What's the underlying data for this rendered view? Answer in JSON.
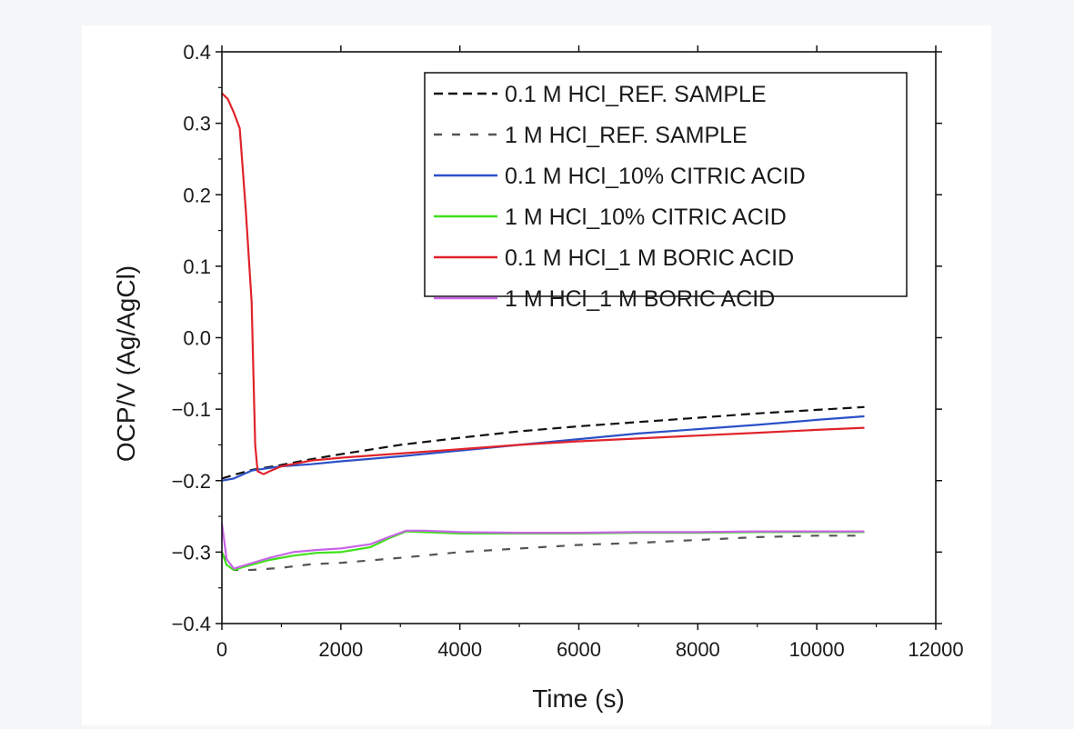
{
  "chart_data": {
    "type": "line",
    "title": "",
    "xlabel": "Time (s)",
    "ylabel": "OCP/V (Ag/AgCl)",
    "xlim": [
      0,
      12000
    ],
    "ylim": [
      -0.4,
      0.4
    ],
    "xticks": [
      0,
      2000,
      4000,
      6000,
      8000,
      10000,
      12000
    ],
    "yticks": [
      0.4,
      0.3,
      0.2,
      0.1,
      0.0,
      -0.1,
      -0.2,
      -0.3,
      -0.4
    ],
    "ytick_labels": [
      "0.4",
      "0.3",
      "0.2",
      "0.1",
      "0.0",
      "−0.1",
      "−0.2",
      "−0.3",
      "−0.4"
    ],
    "grid": false,
    "legend_position": "top-right",
    "series": [
      {
        "name": "0.1 M HCl_REF. SAMPLE",
        "color": "#111111",
        "dash": "dashed",
        "x": [
          0,
          200,
          500,
          1000,
          1500,
          2000,
          3000,
          4000,
          5000,
          6000,
          7000,
          8000,
          9000,
          10000,
          10800
        ],
        "y": [
          -0.197,
          -0.192,
          -0.185,
          -0.178,
          -0.17,
          -0.163,
          -0.15,
          -0.14,
          -0.131,
          -0.124,
          -0.118,
          -0.112,
          -0.106,
          -0.101,
          -0.097
        ]
      },
      {
        "name": "1 M HCl_REF. SAMPLE",
        "color": "#555555",
        "dash": "dashed-wide",
        "x": [
          0,
          100,
          200,
          500,
          1000,
          1500,
          2000,
          3000,
          4000,
          5000,
          6000,
          7000,
          8000,
          9000,
          10000,
          10800
        ],
        "y": [
          -0.3,
          -0.318,
          -0.325,
          -0.325,
          -0.322,
          -0.317,
          -0.315,
          -0.308,
          -0.3,
          -0.295,
          -0.29,
          -0.287,
          -0.283,
          -0.279,
          -0.277,
          -0.277
        ]
      },
      {
        "name": "0.1 M HCl_10% CITRIC ACID",
        "color": "#2b50c8",
        "dash": "solid",
        "x": [
          0,
          200,
          500,
          1000,
          1500,
          2000,
          3000,
          4000,
          5000,
          6000,
          7000,
          8000,
          9000,
          10000,
          10800
        ],
        "y": [
          -0.2,
          -0.197,
          -0.186,
          -0.18,
          -0.177,
          -0.173,
          -0.166,
          -0.158,
          -0.15,
          -0.142,
          -0.134,
          -0.128,
          -0.122,
          -0.115,
          -0.11
        ]
      },
      {
        "name": "1 M HCl_10% CITRIC ACID",
        "color": "#3ee01a",
        "dash": "solid",
        "x": [
          0,
          80,
          200,
          400,
          800,
          1200,
          1600,
          2000,
          2500,
          2800,
          3100,
          3400,
          4000,
          5000,
          6000,
          7000,
          8000,
          9000,
          10000,
          10800
        ],
        "y": [
          -0.3,
          -0.318,
          -0.325,
          -0.32,
          -0.311,
          -0.305,
          -0.301,
          -0.3,
          -0.293,
          -0.281,
          -0.271,
          -0.272,
          -0.274,
          -0.274,
          -0.274,
          -0.273,
          -0.273,
          -0.272,
          -0.272,
          -0.272
        ]
      },
      {
        "name": "0.1 M HCl_1 M BORIC ACID",
        "color": "#e0232b",
        "dash": "solid",
        "x": [
          0,
          100,
          200,
          300,
          400,
          500,
          560,
          600,
          700,
          800,
          1000,
          1500,
          2000,
          3000,
          4000,
          5000,
          6000,
          7000,
          8000,
          9000,
          10000,
          10800
        ],
        "y": [
          0.342,
          0.334,
          0.315,
          0.293,
          0.18,
          0.05,
          -0.15,
          -0.187,
          -0.191,
          -0.187,
          -0.18,
          -0.172,
          -0.168,
          -0.162,
          -0.156,
          -0.15,
          -0.145,
          -0.141,
          -0.137,
          -0.133,
          -0.129,
          -0.126
        ]
      },
      {
        "name": "1 M HCl_1 M BORIC ACID",
        "color": "#c865e8",
        "dash": "solid",
        "x": [
          0,
          80,
          200,
          400,
          800,
          1200,
          1600,
          2000,
          2500,
          2800,
          3100,
          3400,
          4000,
          5000,
          6000,
          7000,
          8000,
          9000,
          10000,
          10800
        ],
        "y": [
          -0.26,
          -0.31,
          -0.323,
          -0.318,
          -0.308,
          -0.3,
          -0.297,
          -0.295,
          -0.289,
          -0.279,
          -0.27,
          -0.27,
          -0.272,
          -0.273,
          -0.273,
          -0.272,
          -0.272,
          -0.271,
          -0.271,
          -0.271
        ]
      }
    ]
  }
}
